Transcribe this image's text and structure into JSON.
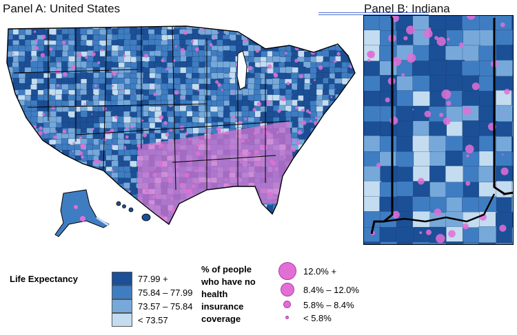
{
  "panels": {
    "a_title": "Panel A: United States",
    "b_title": "Panel B: Indiana"
  },
  "legend": {
    "life_expectancy": {
      "title": "Life Expectancy",
      "classes": [
        {
          "label": "77.99 +",
          "color": "#1b4f96"
        },
        {
          "label": "75.84 – 77.99",
          "color": "#3f7dc2"
        },
        {
          "label": "73.57 – 75.84",
          "color": "#76a9da"
        },
        {
          "label": "< 73.57",
          "color": "#c3dcf0"
        }
      ]
    },
    "insurance": {
      "title_lines": [
        "% of people",
        "who have no",
        "health",
        "insurance",
        "coverage"
      ],
      "classes": [
        {
          "label": "12.0% +"
        },
        {
          "label": "8.4% – 12.0%"
        },
        {
          "label": "5.8% – 8.4%"
        },
        {
          "label": "< 5.8%"
        }
      ],
      "bubble_color": "#e26fd6"
    }
  }
}
